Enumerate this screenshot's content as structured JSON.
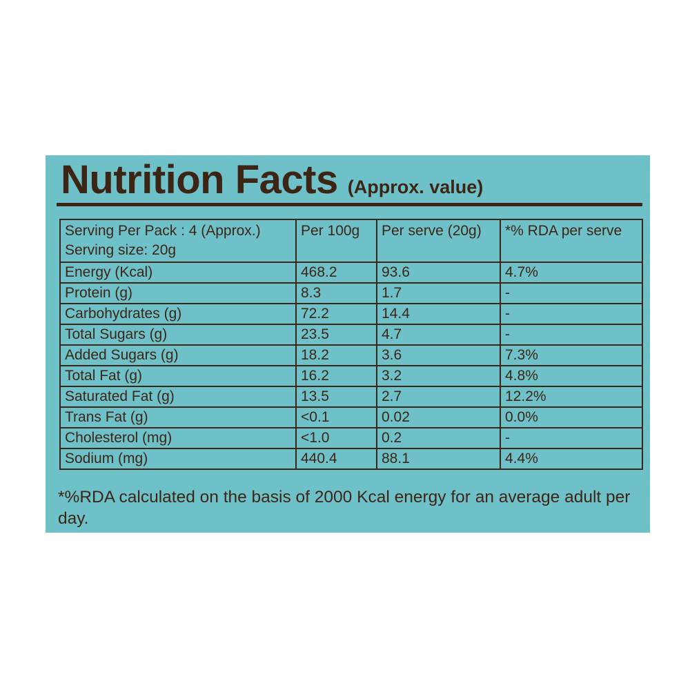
{
  "title": "Nutrition Facts",
  "subtitle": "(Approx. value)",
  "colors": {
    "panel": "#6fc1c9",
    "text": "#3d2516"
  },
  "header": {
    "serving_per_pack": "Serving Per Pack : 4 (Approx.)",
    "serving_size": "Serving size: 20g",
    "per_100g": "Per 100g",
    "per_serve": "Per serve (20g)",
    "rda": "*% RDA per serve"
  },
  "rows": [
    {
      "nutrient": "Energy (Kcal)",
      "per_100g": "468.2",
      "per_serve": "93.6",
      "rda": "4.7%"
    },
    {
      "nutrient": "Protein (g)",
      "per_100g": "8.3",
      "per_serve": "1.7",
      "rda": "-"
    },
    {
      "nutrient": "Carbohydrates (g)",
      "per_100g": "72.2",
      "per_serve": "14.4",
      "rda": "-"
    },
    {
      "nutrient": "Total Sugars (g)",
      "per_100g": "23.5",
      "per_serve": "4.7",
      "rda": "-"
    },
    {
      "nutrient": "Added Sugars (g)",
      "per_100g": "18.2",
      "per_serve": "3.6",
      "rda": "7.3%"
    },
    {
      "nutrient": "Total Fat (g)",
      "per_100g": "16.2",
      "per_serve": "3.2",
      "rda": "4.8%"
    },
    {
      "nutrient": "Saturated Fat (g)",
      "per_100g": "13.5",
      "per_serve": "2.7",
      "rda": "12.2%"
    },
    {
      "nutrient": "Trans Fat (g)",
      "per_100g": "<0.1",
      "per_serve": "0.02",
      "rda": "0.0%"
    },
    {
      "nutrient": "Cholesterol (mg)",
      "per_100g": "<1.0",
      "per_serve": "0.2",
      "rda": "-"
    },
    {
      "nutrient": "Sodium (mg)",
      "per_100g": "440.4",
      "per_serve": "88.1",
      "rda": "4.4%"
    }
  ],
  "footnote": "*%RDA calculated on the basis of 2000 Kcal energy for an average adult per day."
}
